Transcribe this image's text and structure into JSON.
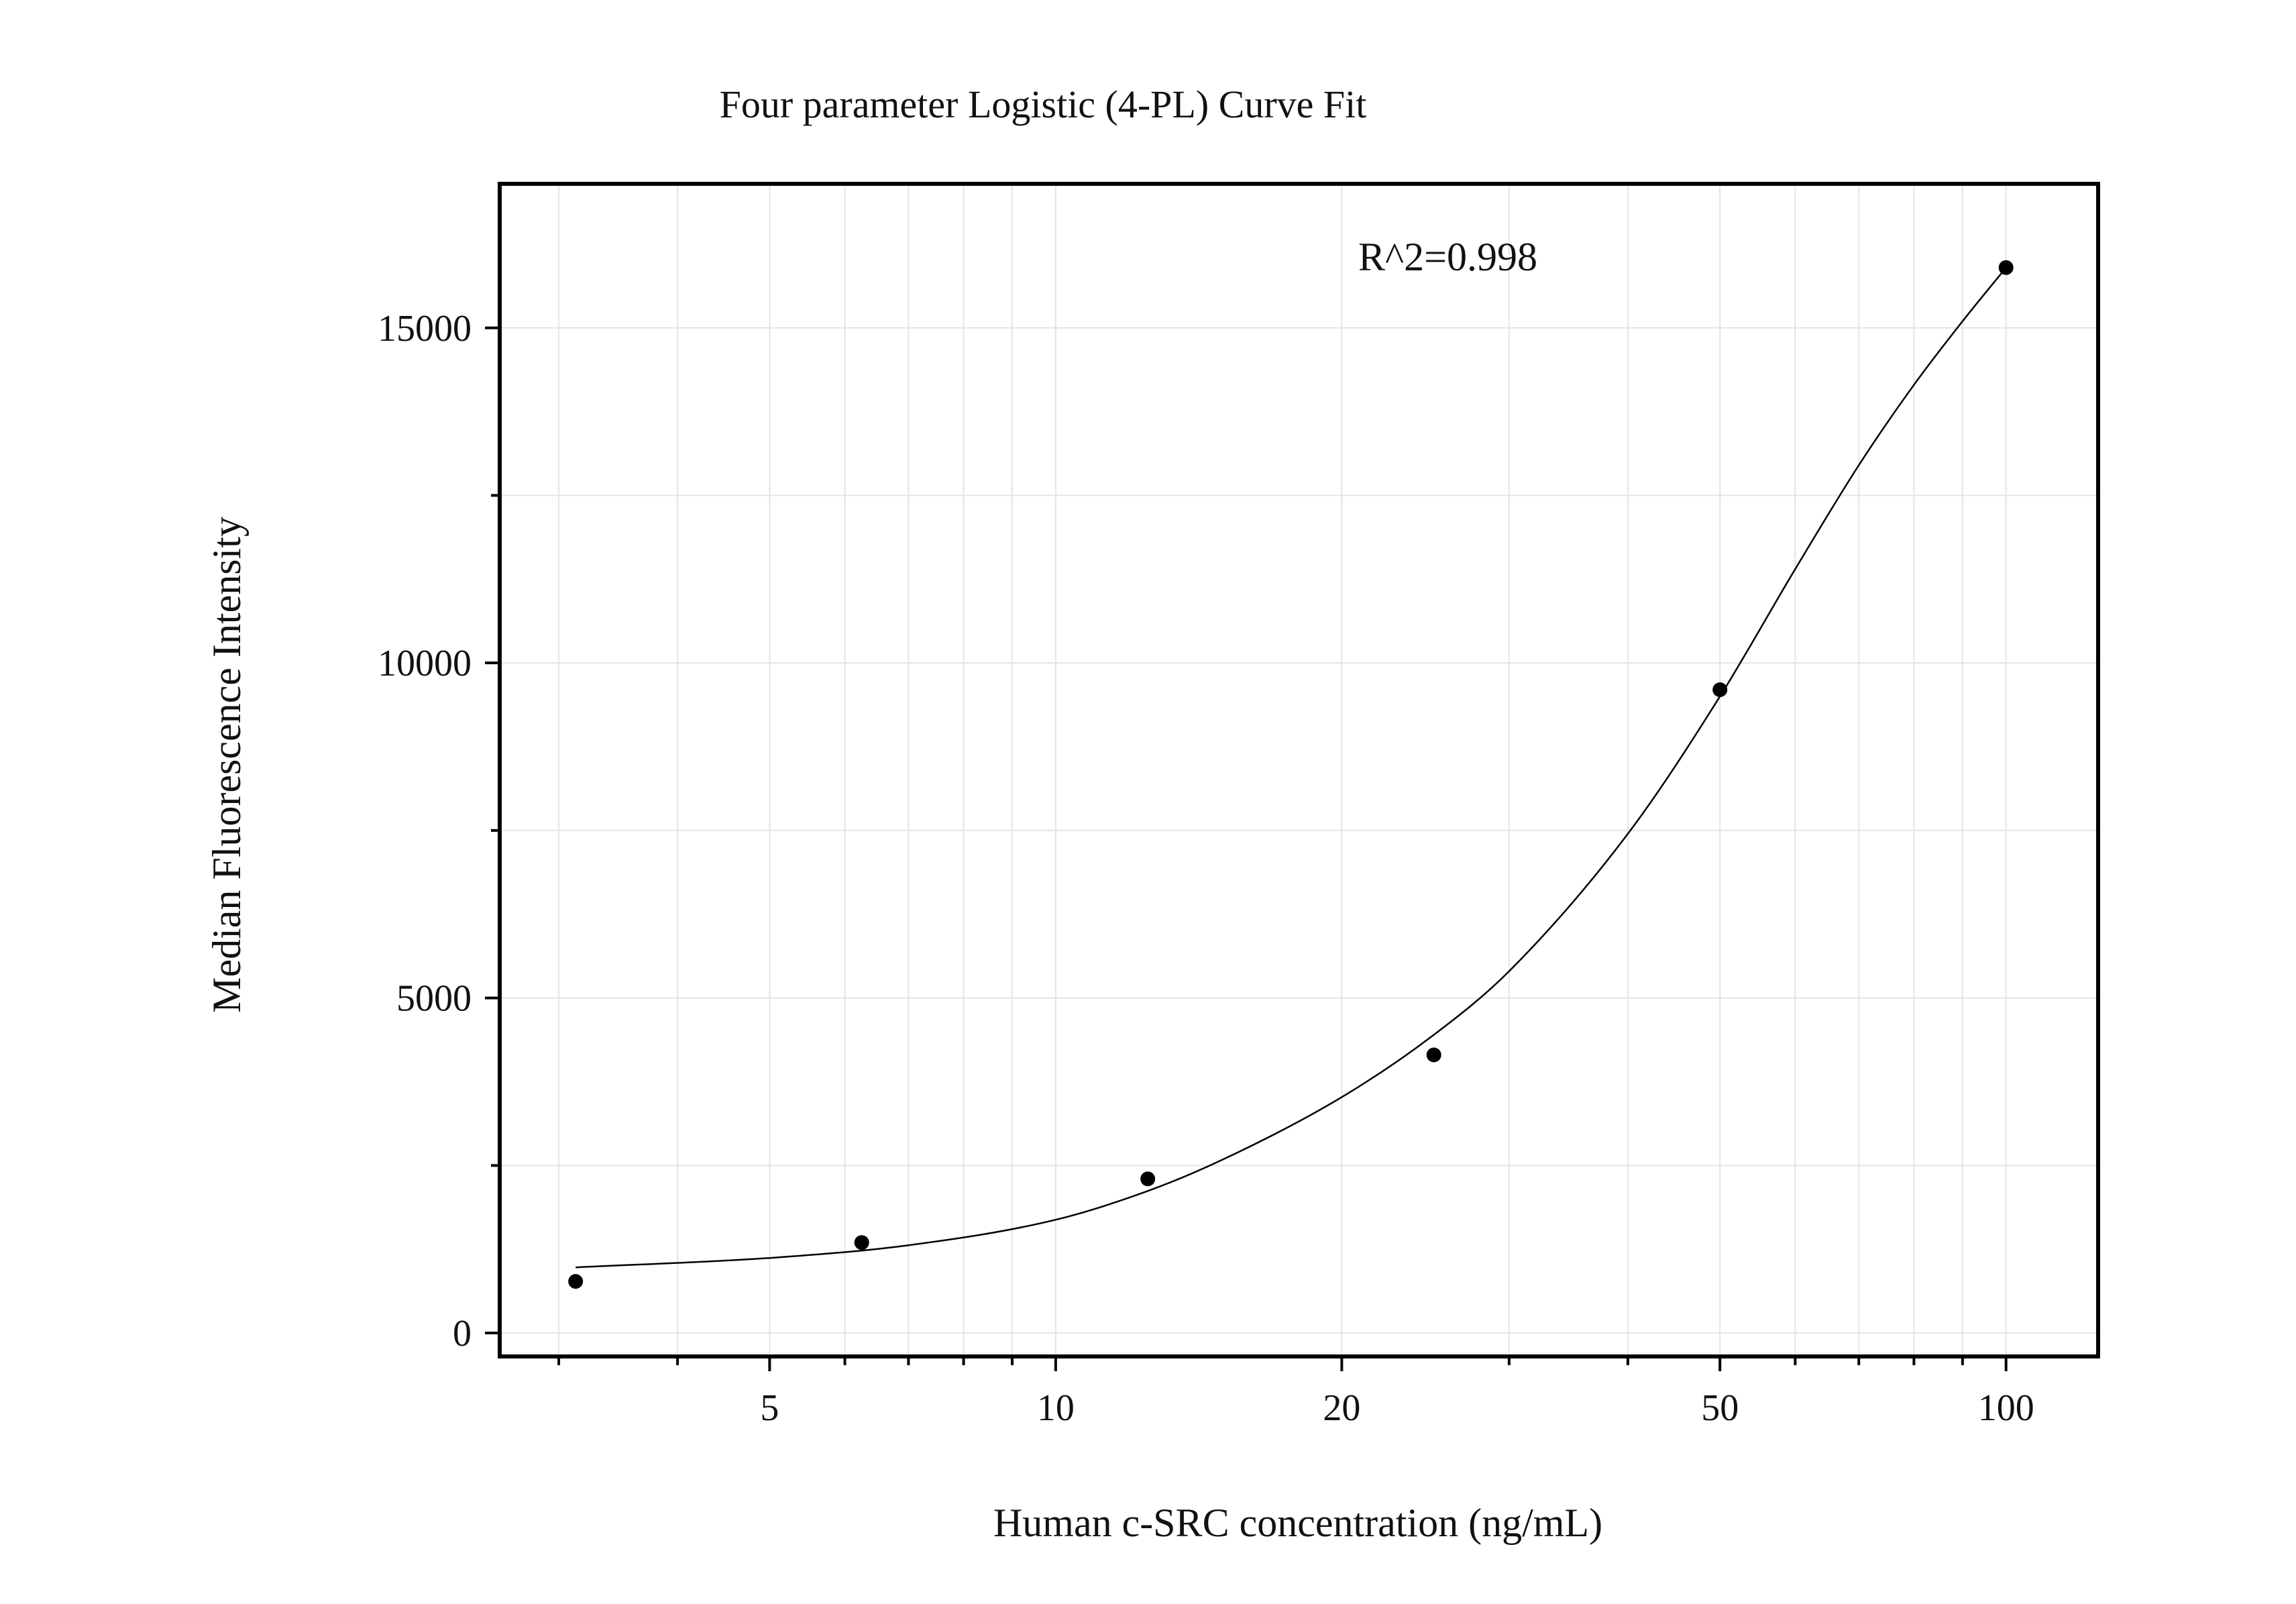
{
  "chart_data": {
    "type": "scatter",
    "title": "Four parameter Logistic (4-PL) Curve Fit",
    "xlabel": "Human c-SRC concentration (ng/mL)",
    "ylabel": "Median Fluorescence Intensity",
    "x_scale": "log",
    "xlim": [
      2.6,
      125
    ],
    "ylim": [
      -350,
      17150
    ],
    "x_ticks": [
      5,
      10,
      20,
      50,
      100
    ],
    "x_tick_labels": [
      "5",
      "10",
      "20",
      "50",
      "100"
    ],
    "y_ticks": [
      0,
      5000,
      10000,
      15000
    ],
    "y_tick_labels": [
      "0",
      "5000",
      "10000",
      "15000"
    ],
    "grid": true,
    "legend": "none",
    "annotation": "R^2=0.998",
    "series": [
      {
        "type": "scatter",
        "x": [
          3.125,
          6.25,
          12.5,
          25,
          50,
          100
        ],
        "y": [
          770,
          1350,
          2300,
          4150,
          9600,
          15900
        ]
      },
      {
        "type": "line",
        "fit": "4-PL",
        "x": [
          3.125,
          5,
          7,
          10,
          12.5,
          15,
          20,
          25,
          30,
          40,
          50,
          60,
          70,
          80,
          90,
          100
        ],
        "y": [
          980,
          1120,
          1310,
          1690,
          2120,
          2590,
          3520,
          4450,
          5400,
          7450,
          9500,
          11400,
          12950,
          14150,
          15100,
          15900
        ]
      }
    ],
    "colors": {
      "axis": "#000000",
      "grid": "#e4e4e4",
      "points": "#000000",
      "curve": "#000000"
    }
  }
}
